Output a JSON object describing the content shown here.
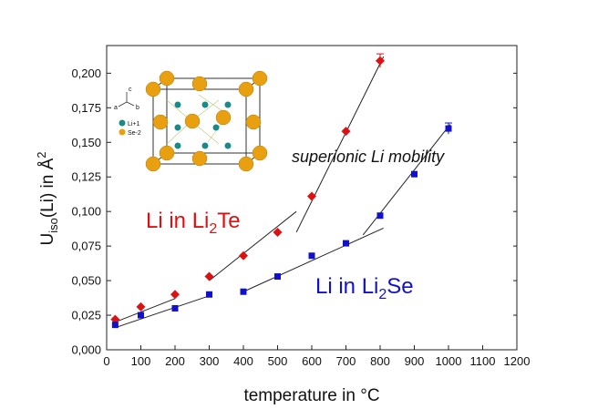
{
  "chart_data": {
    "type": "scatter",
    "xlabel": "temperature in °C",
    "ylabel_main": "U",
    "ylabel_sub": "iso",
    "ylabel_rest": "(Li)  in  Å",
    "ylabel_sup": "2",
    "xlim": [
      0,
      1200
    ],
    "ylim": [
      0,
      0.22
    ],
    "xticks": [
      0,
      100,
      200,
      300,
      400,
      500,
      600,
      700,
      800,
      900,
      1000,
      1100,
      1200
    ],
    "xtick_labels": [
      "0",
      "100",
      "200",
      "300",
      "400",
      "500",
      "600",
      "700",
      "800",
      "900",
      "1000",
      "1100",
      "1200"
    ],
    "yticks": [
      0,
      0.025,
      0.05,
      0.075,
      0.1,
      0.125,
      0.15,
      0.175,
      0.2
    ],
    "ytick_labels": [
      "0,000",
      "0,025",
      "0,050",
      "0,075",
      "0,100",
      "0,125",
      "0,150",
      "0,175",
      "0,200"
    ],
    "grid": false,
    "series": [
      {
        "name": "Li in Li2Te",
        "color": "#dd1111",
        "marker": "diamond",
        "x": [
          25,
          100,
          200,
          300,
          400,
          500,
          600,
          700,
          800
        ],
        "y": [
          0.022,
          0.031,
          0.04,
          0.053,
          0.068,
          0.085,
          0.111,
          0.158,
          0.209
        ],
        "err": [
          0,
          0,
          0,
          0,
          0,
          0,
          0,
          0,
          0.005
        ],
        "fit_segments": [
          [
            [
              25,
              0.02
            ],
            [
              200,
              0.037
            ]
          ],
          [
            [
              300,
              0.05
            ],
            [
              555,
              0.1
            ]
          ],
          [
            [
              555,
              0.085
            ],
            [
              810,
              0.212
            ]
          ]
        ]
      },
      {
        "name": "Li in Li2Se",
        "color": "#1111cc",
        "marker": "square",
        "x": [
          25,
          100,
          200,
          300,
          400,
          500,
          600,
          700,
          800,
          900,
          1000
        ],
        "y": [
          0.018,
          0.025,
          0.03,
          0.04,
          0.042,
          0.053,
          0.068,
          0.077,
          0.097,
          0.127,
          0.16
        ],
        "err": [
          0,
          0,
          0,
          0,
          0,
          0,
          0,
          0,
          0,
          0,
          0.004
        ],
        "fit_segments": [
          [
            [
              25,
              0.016
            ],
            [
              300,
              0.039
            ]
          ],
          [
            [
              400,
              0.042
            ],
            [
              810,
              0.088
            ]
          ],
          [
            [
              750,
              0.083
            ],
            [
              1005,
              0.163
            ]
          ]
        ]
      }
    ],
    "annotations": {
      "te_label": "Li in Li",
      "te_sub": "2",
      "te_tail": "Te",
      "se_label": "Li in Li",
      "se_sub": "2",
      "se_tail": "Se",
      "mobility": "superionic Li mobility",
      "te_color": "#dd1111",
      "se_color": "#1111cc"
    },
    "inset": {
      "axis_labels": [
        "a",
        "b",
        "c"
      ],
      "legend": [
        "Li+1",
        "Se-2"
      ],
      "li_color": "#1a8a88",
      "se_color": "#e8a010"
    }
  }
}
